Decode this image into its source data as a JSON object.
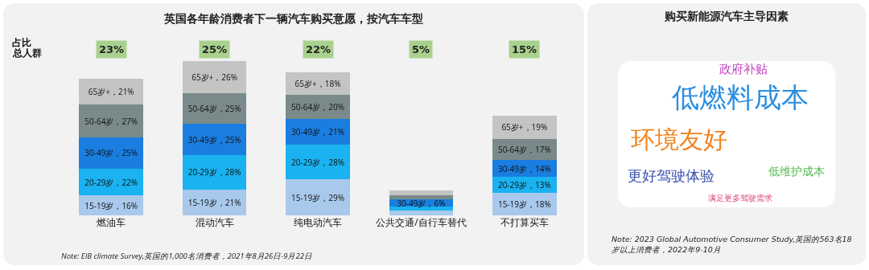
{
  "chart_data": [
    {
      "type": "bar",
      "title": "英国各年龄消费者下一辆汽车购买意愿，按汽车车型",
      "stacked": true,
      "categories": [
        "燃油车",
        "混动汽车",
        "纯电动汽车",
        "公共交通/自行车替代",
        "不打算买车"
      ],
      "series": [
        {
          "color": "#a8c8ec",
          "values": [
            16,
            21,
            29,
            4,
            18
          ],
          "value_labels": [
            "15-19岁，16%",
            "15-19岁，21%",
            "15-19岁，29%",
            null,
            "15-19岁，18%"
          ]
        },
        {
          "color": "#1ab2f0",
          "values": [
            22,
            28,
            28,
            3,
            13
          ],
          "value_labels": [
            "20-29岁，22%",
            "20-29岁，28%",
            "20-29岁，28%",
            null,
            "20-29岁，13%"
          ]
        },
        {
          "color": "#1a7ee0",
          "values": [
            25,
            25,
            21,
            6,
            14
          ],
          "value_labels": [
            "30-49岁，25%",
            "30-49岁，25%",
            "30-49岁，21%",
            "30-49岁，6%",
            "30-49岁，14%"
          ]
        },
        {
          "color": "#7a8a8a",
          "values": [
            27,
            25,
            20,
            3,
            17
          ],
          "value_labels": [
            "50-64岁，27%",
            "50-64岁，25%",
            "50-64岁，20%",
            null,
            "50-64岁，17%"
          ]
        },
        {
          "color": "#c4c4c4",
          "values": [
            21,
            26,
            18,
            4,
            19
          ],
          "value_labels": [
            "65岁+，21%",
            "65岁+，26%",
            "65岁+，18%",
            null,
            "65岁+，19%"
          ]
        }
      ],
      "annotations": [
        "23%",
        "25%",
        "22%",
        "5%",
        "15%",
        "占比",
        "总人群",
        "Note: EIB climate Survey,英国的1,000名消费者，2021年8月26日-9月22日"
      ]
    },
    {
      "type": "other",
      "title": "购买新能源汽车主导因素",
      "annotations": [
        "政府补贴",
        "低燃料成本",
        "环境友好",
        "更好驾驶体验",
        "低维护成本",
        "满足更多驾驶需求",
        "Note: 2023 Global Automotive Consumer Study,英国的563名18岁以上消费者，2022年9-10月"
      ],
      "colors": [
        "#c040c0",
        "#2a8ee0",
        "#f0821e",
        "#3a50b0",
        "#50b850",
        "#e0407a"
      ]
    }
  ]
}
